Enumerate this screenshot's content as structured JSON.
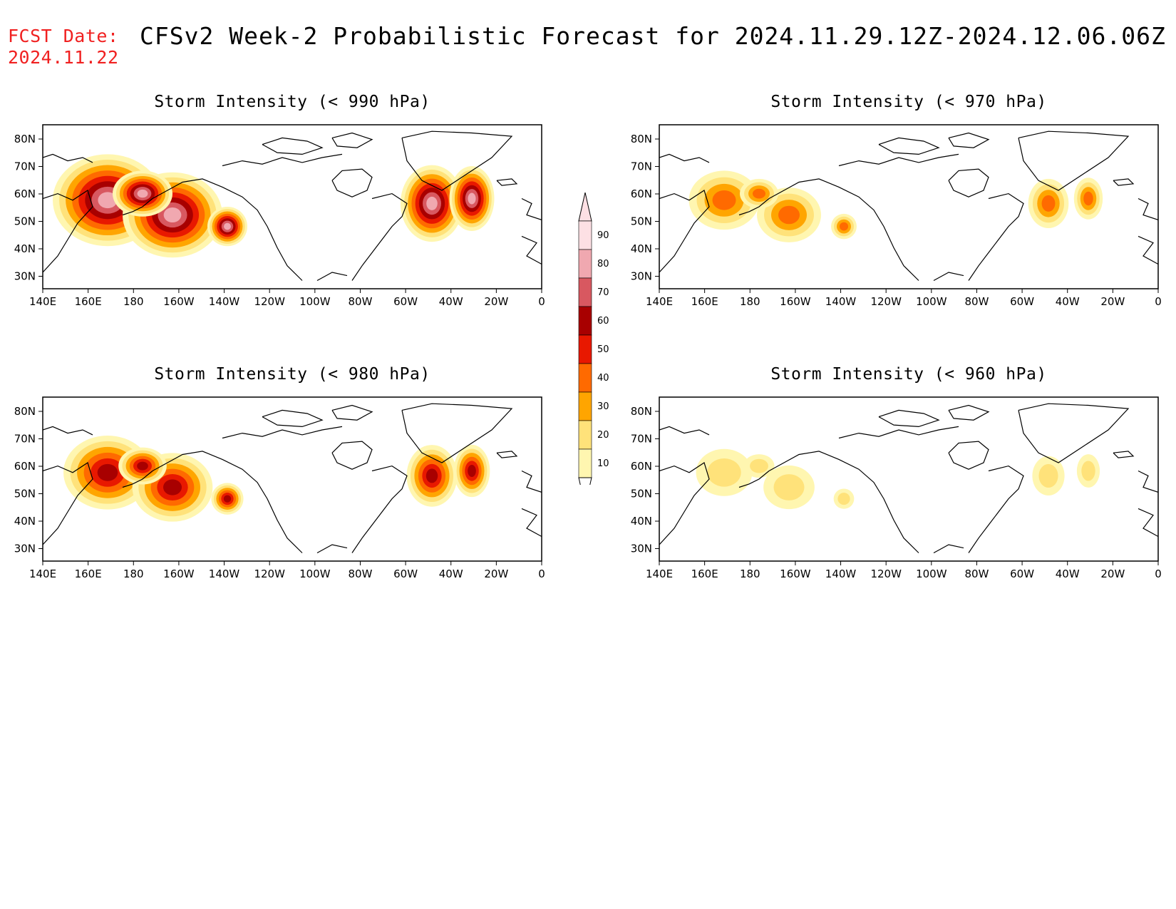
{
  "header": {
    "fcst_line1": "FCST Date:",
    "fcst_line2": "2024.11.22",
    "title": "CFSv2 Week-2 Probabilistic Forecast for 2024.11.29.12Z-2024.12.06.06Z"
  },
  "axes": {
    "lon_labels": [
      "140E",
      "160E",
      "180",
      "160W",
      "140W",
      "120W",
      "100W",
      "80W",
      "60W",
      "40W",
      "20W",
      "0"
    ],
    "lat_labels": [
      "80N",
      "70N",
      "60N",
      "50N",
      "40N",
      "30N"
    ]
  },
  "colorbar": {
    "levels": [
      "10",
      "20",
      "30",
      "40",
      "50",
      "60",
      "70",
      "80",
      "90"
    ],
    "colors": [
      "#fff6b0",
      "#ffe27a",
      "#ffa500",
      "#ff6a00",
      "#e81800",
      "#a80000",
      "#d85860",
      "#f0a8b0",
      "#fde0e4"
    ]
  },
  "panels": [
    {
      "id": "p990",
      "title": "Storm Intensity (< 990 hPa)",
      "intensity": 1.0
    },
    {
      "id": "p970",
      "title": "Storm Intensity (< 970 hPa)",
      "intensity": 0.45
    },
    {
      "id": "p980",
      "title": "Storm Intensity (< 980 hPa)",
      "intensity": 0.7
    },
    {
      "id": "p960",
      "title": "Storm Intensity (< 960 hPa)",
      "intensity": 0.25
    }
  ]
}
